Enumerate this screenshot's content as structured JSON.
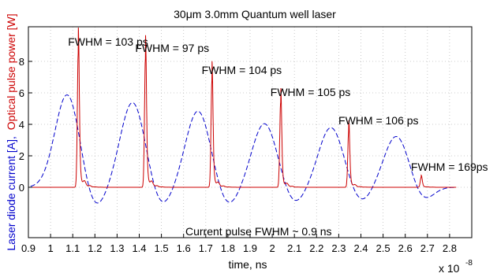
{
  "chart_data": {
    "type": "line",
    "title": "30μm 3.0mm Quantum well laser",
    "xlabel": "time, ns",
    "x_multiplier_label": "x 10",
    "x_multiplier_exp": "-8",
    "ylabel_blue": "Laser diode current [A],",
    "ylabel_red": "Optical pulse power [W]",
    "xlim": [
      0.9,
      2.9
    ],
    "ylim": [
      -3.2,
      10.2
    ],
    "grid": true,
    "x_ticks": [
      0.9,
      1.0,
      1.1,
      1.2,
      1.3,
      1.4,
      1.5,
      1.6,
      1.7,
      1.8,
      1.9,
      2.0,
      2.1,
      2.2,
      2.3,
      2.4,
      2.5,
      2.6,
      2.7,
      2.8
    ],
    "x_tick_labels": [
      "0.9",
      "1",
      "1.1",
      "1.2",
      "1.3",
      "1.4",
      "1.5",
      "1.6",
      "1.7",
      "1.8",
      "1.9",
      "2",
      "2.1",
      "2.2",
      "2.3",
      "2.4",
      "2.5",
      "2.6",
      "2.7",
      "2.8"
    ],
    "y_ticks": [
      0,
      2,
      4,
      6,
      8
    ],
    "y_tick_labels": [
      "0",
      "2",
      "4",
      "6",
      "8"
    ],
    "colors": {
      "current": "#0000cc",
      "optical": "#cc0000"
    },
    "current_pulses": [
      {
        "center": 1.075,
        "peak": 5.9
      },
      {
        "center": 1.37,
        "peak": 5.4
      },
      {
        "center": 1.665,
        "peak": 4.85
      },
      {
        "center": 1.965,
        "peak": 4.05
      },
      {
        "center": 2.265,
        "peak": 3.8
      },
      {
        "center": 2.56,
        "peak": 3.25
      }
    ],
    "current_troughs": [
      {
        "center": 1.2,
        "depth": -1.4
      },
      {
        "center": 1.5,
        "depth": -1.25
      },
      {
        "center": 1.8,
        "depth": -1.2
      },
      {
        "center": 2.1,
        "depth": -1.05
      },
      {
        "center": 2.4,
        "depth": -0.95
      },
      {
        "center": 2.68,
        "depth": -0.85
      }
    ],
    "optical_pulses": [
      {
        "x": 1.125,
        "peak": 8.6,
        "label": "FWHM = 103 ps"
      },
      {
        "x": 1.428,
        "peak": 8.2,
        "label": "FWHM = 97 ps"
      },
      {
        "x": 1.728,
        "peak": 6.8,
        "label": "FWHM = 104 ps"
      },
      {
        "x": 2.038,
        "peak": 5.4,
        "label": "FWHM = 105 ps"
      },
      {
        "x": 2.345,
        "peak": 3.6,
        "label": "FWHM = 106 ps"
      },
      {
        "x": 2.672,
        "peak": 0.65,
        "label": "FWHM = 169ps"
      }
    ],
    "annotation": "Current pulse FWHM ~ 0.9 ns"
  }
}
